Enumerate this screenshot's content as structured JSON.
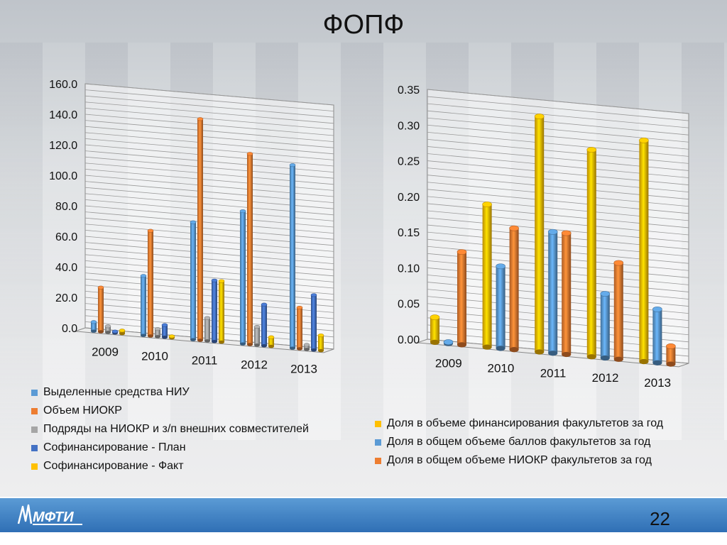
{
  "slide": {
    "title": "ФОПФ",
    "page_number": "22",
    "logo_text": "МФТИ"
  },
  "colors": {
    "blue": "#5b9bd5",
    "orange": "#ed7d31",
    "gray": "#a5a5a5",
    "darkblue": "#4472c4",
    "yellow": "#ffc000"
  },
  "chart_data": [
    {
      "type": "bar",
      "categories": [
        "2009",
        "2010",
        "2011",
        "2012",
        "2013"
      ],
      "ylim": [
        0,
        160
      ],
      "yticks": [
        "0.0",
        "20.0",
        "40.0",
        "60.0",
        "80.0",
        "100.0",
        "120.0",
        "140.0",
        "160.0"
      ],
      "grid": true,
      "legend_position": "bottom-left",
      "series": [
        {
          "name": "Выделенные средства НИУ",
          "color": "#5b9bd5",
          "values": [
            6,
            39,
            77,
            87,
            120
          ]
        },
        {
          "name": "Объем НИОКР",
          "color": "#ed7d31",
          "values": [
            29,
            69,
            145,
            125,
            27
          ]
        },
        {
          "name": "Подряды на НИОКР и з/п внешних совместителей",
          "color": "#a5a5a5",
          "values": [
            4,
            5,
            15,
            12,
            3
          ]
        },
        {
          "name": "Софинансирование - План",
          "color": "#4472c4",
          "values": [
            1,
            8,
            40,
            27,
            36
          ]
        },
        {
          "name": "Софинансирование - Факт",
          "color": "#ffc000",
          "values": [
            2,
            1,
            40,
            6,
            10
          ]
        }
      ]
    },
    {
      "type": "bar",
      "categories": [
        "2009",
        "2010",
        "2011",
        "2012",
        "2013"
      ],
      "ylim": [
        0,
        0.35
      ],
      "yticks": [
        "0.00",
        "0.05",
        "0.10",
        "0.15",
        "0.20",
        "0.25",
        "0.30",
        "0.35"
      ],
      "grid": true,
      "legend_position": "bottom",
      "series": [
        {
          "name": "Доля в объеме финансирования факультетов за год",
          "color": "#ffc000",
          "values": [
            0.035,
            0.2,
            0.33,
            0.29,
            0.31
          ]
        },
        {
          "name": "Доля в общем объеме баллов факультетов за год",
          "color": "#5b9bd5",
          "values": [
            0.0,
            0.115,
            0.17,
            0.09,
            0.075
          ]
        },
        {
          "name": "Доля в общем объеме НИОКР факультетов за год",
          "color": "#ed7d31",
          "values": [
            0.13,
            0.17,
            0.17,
            0.135,
            0.025
          ]
        }
      ]
    }
  ]
}
